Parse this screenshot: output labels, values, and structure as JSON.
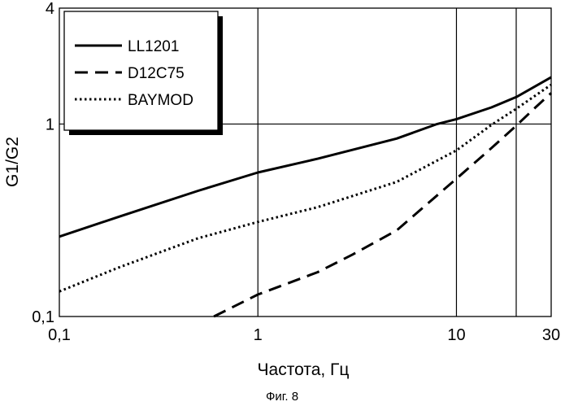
{
  "chart_data": {
    "type": "line",
    "title": "",
    "caption": "Фиг. 8",
    "xlabel": "Частота, Гц",
    "ylabel": "G1/G2",
    "xscale": "log",
    "yscale": "log",
    "xlim": [
      0.1,
      30
    ],
    "ylim": [
      0.1,
      4
    ],
    "xticks": [
      {
        "value": 0.1,
        "label": "0,1"
      },
      {
        "value": 1,
        "label": "1"
      },
      {
        "value": 10,
        "label": "10"
      },
      {
        "value": 30,
        "label": "30"
      }
    ],
    "yticks": [
      {
        "value": 0.1,
        "label": "0,1"
      },
      {
        "value": 1,
        "label": "1"
      },
      {
        "value": 4,
        "label": "4"
      }
    ],
    "gridlines_x": [
      1,
      10,
      20
    ],
    "gridlines_y": [
      1
    ],
    "legend": {
      "position": "top-left",
      "frame": true,
      "shadow": true
    },
    "series": [
      {
        "name": "LL1201",
        "style": "solid",
        "color": "#000000",
        "x": [
          0.1,
          0.2,
          0.5,
          1,
          2,
          5,
          8,
          10,
          15,
          20,
          30
        ],
        "y": [
          0.26,
          0.33,
          0.45,
          0.56,
          0.66,
          0.84,
          1.0,
          1.06,
          1.22,
          1.38,
          1.75
        ]
      },
      {
        "name": "D12C75",
        "style": "dashed",
        "color": "#000000",
        "x": [
          0.6,
          1,
          2,
          3,
          5,
          10,
          15,
          20,
          25,
          30
        ],
        "y": [
          0.1,
          0.13,
          0.17,
          0.21,
          0.28,
          0.52,
          0.75,
          0.98,
          1.22,
          1.45
        ]
      },
      {
        "name": "BAYMOD",
        "style": "dotted",
        "color": "#000000",
        "x": [
          0.1,
          0.2,
          0.5,
          1,
          2,
          5,
          10,
          15,
          20,
          30
        ],
        "y": [
          0.135,
          0.18,
          0.255,
          0.31,
          0.37,
          0.5,
          0.73,
          0.99,
          1.2,
          1.6
        ]
      }
    ]
  }
}
